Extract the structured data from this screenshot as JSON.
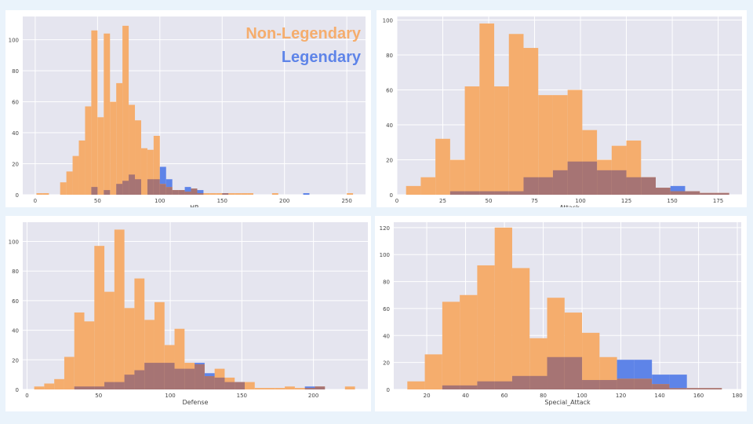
{
  "colors": {
    "background": "#eaf3fb",
    "plot_bg": "#e5e5ef",
    "grid": "#ffffff",
    "non_legendary": "#f5ad6d",
    "legendary": "#5e84e8",
    "overlap": "#a67474",
    "tick_text": "#444444"
  },
  "legend": {
    "non_legendary": "Non-Legendary",
    "legendary": "Legendary"
  },
  "chart_data": [
    {
      "type": "bar",
      "xlabel": "HP",
      "ylabel": "",
      "grid": true,
      "legend_position": "top-right",
      "xlim": [
        -10,
        265
      ],
      "ylim": [
        0,
        115
      ],
      "xticks": [
        0,
        50,
        100,
        150,
        200,
        250
      ],
      "yticks": [
        0,
        20,
        40,
        60,
        80,
        100
      ],
      "series": [
        {
          "name": "Non-Legendary",
          "bins": [
            [
              1,
              6,
              1
            ],
            [
              6,
              11,
              1
            ],
            [
              20,
              25,
              8
            ],
            [
              25,
              30,
              15
            ],
            [
              30,
              35,
              25
            ],
            [
              35,
              40,
              35
            ],
            [
              40,
              45,
              57
            ],
            [
              45,
              50,
              106
            ],
            [
              50,
              55,
              50
            ],
            [
              55,
              60,
              104
            ],
            [
              60,
              65,
              60
            ],
            [
              65,
              70,
              72
            ],
            [
              70,
              75,
              109
            ],
            [
              75,
              80,
              58
            ],
            [
              80,
              85,
              48
            ],
            [
              85,
              90,
              30
            ],
            [
              90,
              95,
              29
            ],
            [
              95,
              100,
              38
            ],
            [
              100,
              105,
              7
            ],
            [
              105,
              110,
              5
            ],
            [
              110,
              115,
              3
            ],
            [
              115,
              120,
              3
            ],
            [
              120,
              125,
              2
            ],
            [
              125,
              130,
              4
            ],
            [
              130,
              135,
              1
            ],
            [
              135,
              140,
              1
            ],
            [
              140,
              145,
              1
            ],
            [
              145,
              150,
              1
            ],
            [
              150,
              155,
              1
            ],
            [
              155,
              160,
              1
            ],
            [
              160,
              165,
              1
            ],
            [
              165,
              170,
              1
            ],
            [
              170,
              175,
              1
            ],
            [
              190,
              195,
              1
            ],
            [
              250,
              255,
              1
            ]
          ]
        },
        {
          "name": "Legendary",
          "bins": [
            [
              45,
              50,
              5
            ],
            [
              55,
              60,
              3
            ],
            [
              65,
              70,
              7
            ],
            [
              70,
              75,
              9
            ],
            [
              75,
              80,
              13
            ],
            [
              80,
              85,
              10
            ],
            [
              90,
              95,
              10
            ],
            [
              95,
              100,
              10
            ],
            [
              100,
              105,
              18
            ],
            [
              105,
              110,
              10
            ],
            [
              110,
              115,
              3
            ],
            [
              115,
              120,
              3
            ],
            [
              120,
              125,
              5
            ],
            [
              125,
              130,
              4
            ],
            [
              130,
              135,
              3
            ],
            [
              150,
              155,
              1
            ],
            [
              215,
              220,
              1
            ]
          ]
        }
      ]
    },
    {
      "type": "bar",
      "xlabel": "Attack",
      "ylabel": "",
      "grid": true,
      "xlim": [
        0,
        188
      ],
      "ylim": [
        0,
        102
      ],
      "xticks": [
        0,
        25,
        50,
        75,
        100,
        125,
        150,
        175
      ],
      "yticks": [
        0,
        20,
        40,
        60,
        80,
        100
      ],
      "series": [
        {
          "name": "Non-Legendary",
          "bins": [
            [
              5,
              13,
              5
            ],
            [
              13,
              21,
              10
            ],
            [
              21,
              29,
              32
            ],
            [
              29,
              37,
              20
            ],
            [
              37,
              45,
              62
            ],
            [
              45,
              53,
              98
            ],
            [
              53,
              61,
              62
            ],
            [
              61,
              69,
              92
            ],
            [
              69,
              77,
              84
            ],
            [
              77,
              85,
              57
            ],
            [
              85,
              93,
              57
            ],
            [
              93,
              101,
              60
            ],
            [
              101,
              109,
              37
            ],
            [
              109,
              117,
              20
            ],
            [
              117,
              125,
              28
            ],
            [
              125,
              133,
              31
            ],
            [
              133,
              141,
              10
            ],
            [
              141,
              149,
              4
            ],
            [
              149,
              157,
              2
            ],
            [
              157,
              165,
              2
            ],
            [
              165,
              173,
              1
            ],
            [
              173,
              181,
              1
            ]
          ]
        },
        {
          "name": "Legendary",
          "bins": [
            [
              29,
              37,
              2
            ],
            [
              37,
              45,
              2
            ],
            [
              45,
              53,
              2
            ],
            [
              53,
              61,
              2
            ],
            [
              61,
              69,
              2
            ],
            [
              69,
              77,
              10
            ],
            [
              77,
              85,
              10
            ],
            [
              85,
              93,
              14
            ],
            [
              93,
              101,
              19
            ],
            [
              101,
              109,
              19
            ],
            [
              109,
              117,
              14
            ],
            [
              117,
              125,
              14
            ],
            [
              125,
              133,
              10
            ],
            [
              133,
              141,
              10
            ],
            [
              141,
              149,
              4
            ],
            [
              149,
              157,
              5
            ],
            [
              157,
              165,
              2
            ],
            [
              165,
              173,
              1
            ],
            [
              173,
              181,
              1
            ]
          ]
        }
      ]
    },
    {
      "type": "bar",
      "xlabel": "Defense",
      "ylabel": "",
      "grid": true,
      "xlim": [
        -3,
        238
      ],
      "ylim": [
        0,
        113
      ],
      "xticks": [
        0,
        50,
        100,
        150,
        200
      ],
      "yticks": [
        0,
        20,
        40,
        60,
        80,
        100
      ],
      "series": [
        {
          "name": "Non-Legendary",
          "bins": [
            [
              5,
              12,
              2
            ],
            [
              12,
              19,
              4
            ],
            [
              19,
              26,
              7
            ],
            [
              26,
              33,
              22
            ],
            [
              33,
              40,
              52
            ],
            [
              40,
              47,
              46
            ],
            [
              47,
              54,
              97
            ],
            [
              54,
              61,
              66
            ],
            [
              61,
              68,
              108
            ],
            [
              68,
              75,
              55
            ],
            [
              75,
              82,
              75
            ],
            [
              82,
              89,
              47
            ],
            [
              89,
              96,
              59
            ],
            [
              96,
              103,
              30
            ],
            [
              103,
              110,
              41
            ],
            [
              110,
              117,
              18
            ],
            [
              117,
              124,
              17
            ],
            [
              124,
              131,
              9
            ],
            [
              131,
              138,
              14
            ],
            [
              138,
              145,
              8
            ],
            [
              145,
              152,
              5
            ],
            [
              152,
              159,
              5
            ],
            [
              159,
              166,
              1
            ],
            [
              166,
              173,
              1
            ],
            [
              173,
              180,
              1
            ],
            [
              180,
              187,
              2
            ],
            [
              187,
              194,
              1
            ],
            [
              194,
              201,
              1
            ],
            [
              201,
              208,
              2
            ],
            [
              222,
              229,
              2
            ]
          ]
        },
        {
          "name": "Legendary",
          "bins": [
            [
              33,
              40,
              2
            ],
            [
              40,
              47,
              2
            ],
            [
              47,
              54,
              2
            ],
            [
              54,
              61,
              5
            ],
            [
              61,
              68,
              5
            ],
            [
              68,
              75,
              10
            ],
            [
              75,
              82,
              13
            ],
            [
              82,
              89,
              18
            ],
            [
              89,
              96,
              18
            ],
            [
              96,
              103,
              18
            ],
            [
              103,
              110,
              14
            ],
            [
              110,
              117,
              14
            ],
            [
              117,
              124,
              18
            ],
            [
              124,
              131,
              11
            ],
            [
              131,
              138,
              8
            ],
            [
              138,
              145,
              5
            ],
            [
              145,
              152,
              5
            ],
            [
              194,
              201,
              2
            ],
            [
              201,
              208,
              2
            ]
          ]
        }
      ]
    },
    {
      "type": "bar",
      "xlabel": "Special_Attack",
      "ylabel": "",
      "grid": true,
      "xlim": [
        3,
        182
      ],
      "ylim": [
        0,
        124
      ],
      "xticks": [
        20,
        40,
        60,
        80,
        100,
        120,
        140,
        160,
        180
      ],
      "yticks": [
        0,
        20,
        40,
        60,
        80,
        100,
        120
      ],
      "series": [
        {
          "name": "Non-Legendary",
          "bins": [
            [
              10,
              19,
              6
            ],
            [
              19,
              28,
              26
            ],
            [
              28,
              37,
              65
            ],
            [
              37,
              46,
              70
            ],
            [
              46,
              55,
              92
            ],
            [
              55,
              64,
              120
            ],
            [
              64,
              73,
              90
            ],
            [
              73,
              82,
              38
            ],
            [
              82,
              91,
              68
            ],
            [
              91,
              100,
              57
            ],
            [
              100,
              109,
              42
            ],
            [
              109,
              118,
              24
            ],
            [
              118,
              127,
              8
            ],
            [
              127,
              136,
              8
            ],
            [
              136,
              145,
              4
            ],
            [
              145,
              154,
              1
            ],
            [
              154,
              163,
              1
            ],
            [
              163,
              172,
              1
            ]
          ]
        },
        {
          "name": "Legendary",
          "bins": [
            [
              28,
              37,
              3
            ],
            [
              37,
              46,
              3
            ],
            [
              46,
              55,
              6
            ],
            [
              55,
              64,
              6
            ],
            [
              64,
              73,
              10
            ],
            [
              73,
              82,
              10
            ],
            [
              82,
              91,
              24
            ],
            [
              91,
              100,
              24
            ],
            [
              100,
              109,
              7
            ],
            [
              109,
              118,
              7
            ],
            [
              118,
              127,
              22
            ],
            [
              127,
              136,
              22
            ],
            [
              136,
              145,
              11
            ],
            [
              145,
              154,
              11
            ],
            [
              154,
              163,
              1
            ],
            [
              163,
              172,
              1
            ]
          ]
        }
      ]
    }
  ]
}
